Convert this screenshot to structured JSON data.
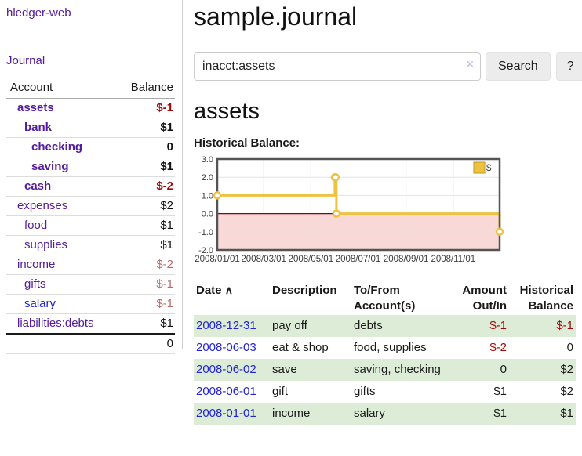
{
  "sidebar": {
    "brand": "hledger-web",
    "nav": {
      "journal_label": "Journal"
    },
    "accounts_table": {
      "headers": {
        "account": "Account",
        "balance": "Balance"
      },
      "rows": [
        {
          "name": "assets",
          "depth": 1,
          "balance": "$-1",
          "bold": true,
          "neg": "strong"
        },
        {
          "name": "bank",
          "depth": 2,
          "balance": "$1",
          "bold": true,
          "neg": "none"
        },
        {
          "name": "checking",
          "depth": 3,
          "balance": "0",
          "bold": true,
          "neg": "none"
        },
        {
          "name": "saving",
          "depth": 3,
          "balance": "$1",
          "bold": true,
          "neg": "none"
        },
        {
          "name": "cash",
          "depth": 2,
          "balance": "$-2",
          "bold": true,
          "neg": "strong"
        },
        {
          "name": "expenses",
          "depth": 1,
          "balance": "$2",
          "bold": false,
          "neg": "none"
        },
        {
          "name": "food",
          "depth": 2,
          "balance": "$1",
          "bold": false,
          "neg": "none"
        },
        {
          "name": "supplies",
          "depth": 2,
          "balance": "$1",
          "bold": false,
          "neg": "none"
        },
        {
          "name": "income",
          "depth": 1,
          "balance": "$-2",
          "bold": false,
          "neg": "soft"
        },
        {
          "name": "gifts",
          "depth": 2,
          "balance": "$-1",
          "bold": false,
          "neg": "soft"
        },
        {
          "name": "salary",
          "depth": 2,
          "balance": "$-1",
          "bold": false,
          "neg": "soft",
          "link_color": "blue"
        },
        {
          "name": "liabilities:debts",
          "depth": 1,
          "balance": "$1",
          "bold": false,
          "neg": "none"
        }
      ],
      "total": "0"
    }
  },
  "header": {
    "title": "sample.journal"
  },
  "search": {
    "value": "inacct:assets",
    "clear_icon": "×",
    "search_label": "Search",
    "help_label": "?"
  },
  "account_page": {
    "title": "assets",
    "chart_label": "Historical Balance:"
  },
  "chart_data": {
    "type": "line",
    "step": true,
    "title": "Historical Balance",
    "series": [
      {
        "name": "$",
        "color": "#edc240",
        "points": [
          [
            "2008-01-01",
            1
          ],
          [
            "2008-06-01",
            2
          ],
          [
            "2008-06-02",
            2
          ],
          [
            "2008-06-03",
            0
          ],
          [
            "2008-12-31",
            -1
          ]
        ]
      }
    ],
    "xrange": [
      "2008-01-01",
      "2008-12-31"
    ],
    "ylim": [
      -2,
      3
    ],
    "yticks": [
      3,
      2,
      1,
      0,
      -1,
      -2
    ],
    "xticks": [
      "2008/01/01",
      "2008/03/01",
      "2008/05/01",
      "2008/07/01",
      "2008/09/01",
      "2008/11/01"
    ],
    "grid": true,
    "legend_position": "top-right",
    "negative_region_color": "#f9d8d8",
    "zero_line_color": "#8b0000",
    "border_color": "#545454"
  },
  "register": {
    "headers": {
      "date": "Date",
      "description": "Description",
      "accounts": "To/From Account(s)",
      "amount": "Amount Out/In",
      "balance": "Historical Balance"
    },
    "sort_icon_glyph": "∧",
    "rows": [
      {
        "date": "2008-12-31",
        "description": "pay off",
        "accounts": "debts",
        "amount": "$-1",
        "balance": "$-1",
        "amount_neg": true,
        "balance_neg": true
      },
      {
        "date": "2008-06-03",
        "description": "eat & shop",
        "accounts": "food, supplies",
        "amount": "$-2",
        "balance": "0",
        "amount_neg": true,
        "balance_neg": false
      },
      {
        "date": "2008-06-02",
        "description": "save",
        "accounts": "saving, checking",
        "amount": "0",
        "balance": "$2",
        "amount_neg": false,
        "balance_neg": false
      },
      {
        "date": "2008-06-01",
        "description": "gift",
        "accounts": "gifts",
        "amount": "$1",
        "balance": "$2",
        "amount_neg": false,
        "balance_neg": false
      },
      {
        "date": "2008-01-01",
        "description": "income",
        "accounts": "salary",
        "amount": "$1",
        "balance": "$1",
        "amount_neg": false,
        "balance_neg": false
      }
    ]
  }
}
